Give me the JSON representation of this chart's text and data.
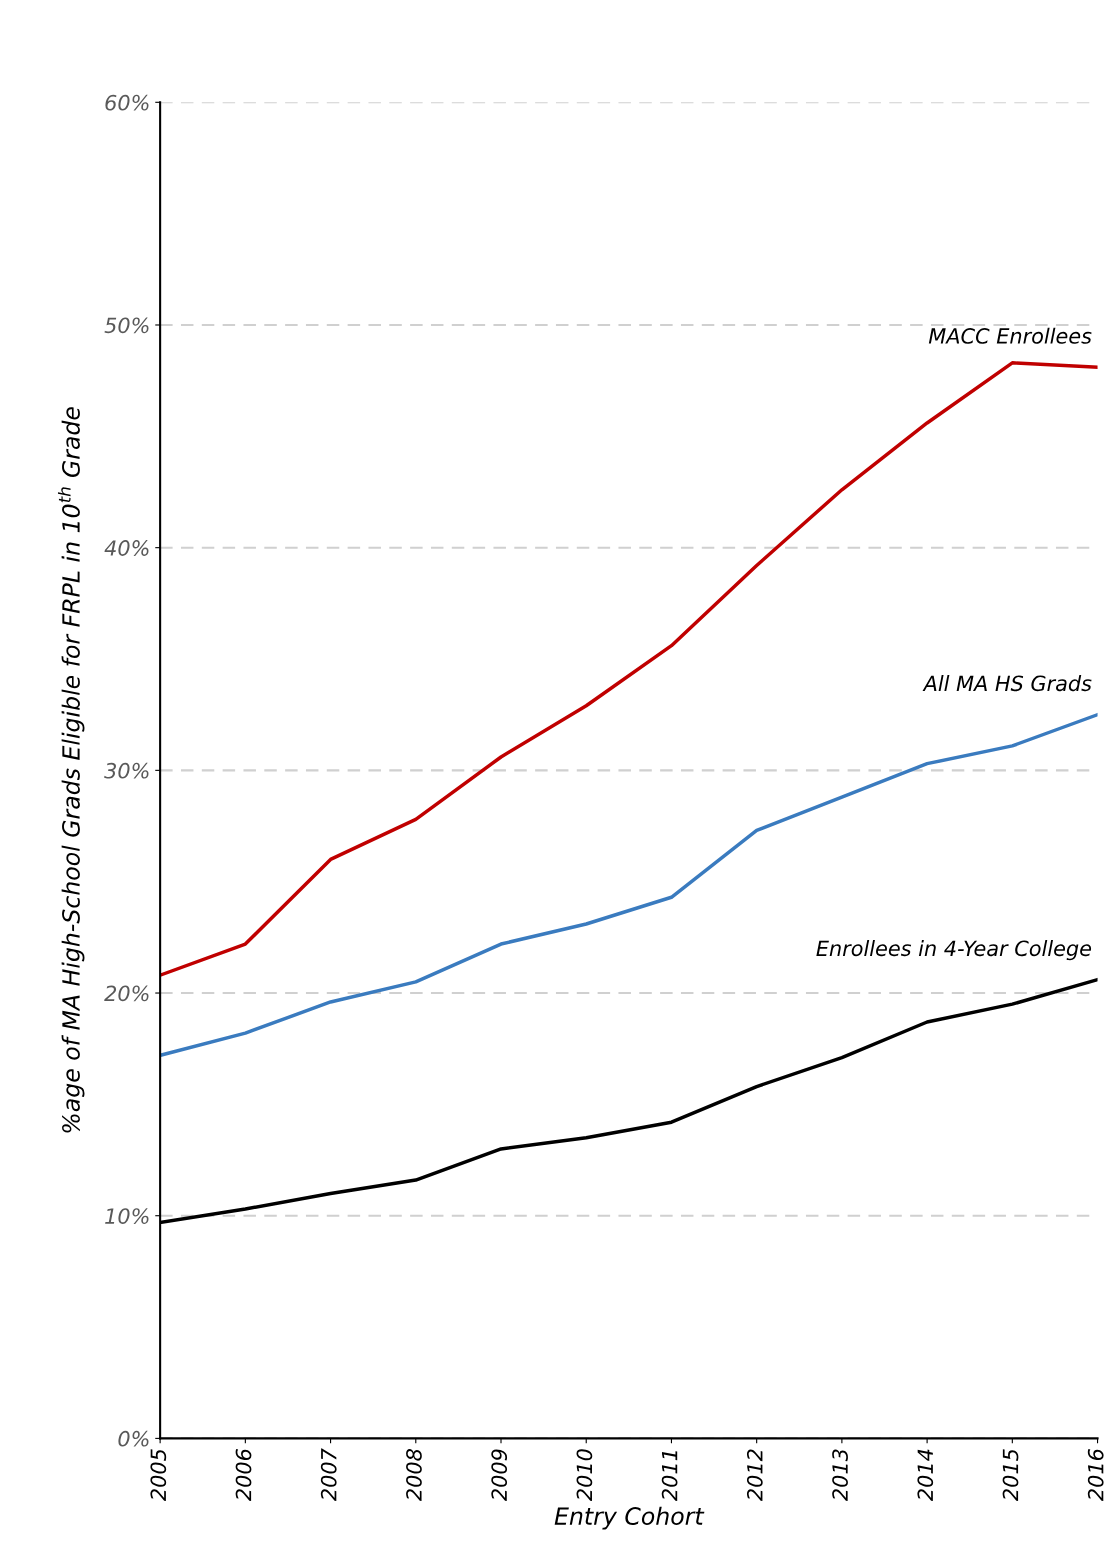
{
  "chart_data": {
    "type": "line",
    "xlabel": "Entry Cohort",
    "ylabel": "%age of MA High-School Grads Eligible for FRPL in 10$^{th}$ Grade",
    "categories": [
      "2005",
      "2006",
      "2007",
      "2008",
      "2009",
      "2010",
      "2011",
      "2012",
      "2013",
      "2014",
      "2015",
      "2016"
    ],
    "series": [
      {
        "name": "MACC Enrollees",
        "color": "#c00000",
        "values": [
          20.8,
          22.2,
          26.0,
          27.8,
          30.6,
          32.9,
          35.6,
          39.2,
          42.6,
          45.6,
          48.3,
          48.1
        ]
      },
      {
        "name": "All MA HS Grads",
        "color": "#3a7bbf",
        "values": [
          17.2,
          18.2,
          19.6,
          20.5,
          22.2,
          23.1,
          24.3,
          27.3,
          28.8,
          30.3,
          31.1,
          32.5
        ]
      },
      {
        "name": "Enrollees in 4-Year College",
        "color": "#000000",
        "values": [
          9.7,
          10.3,
          11.0,
          11.6,
          13.0,
          13.5,
          14.2,
          15.8,
          17.1,
          18.7,
          19.5,
          20.6
        ]
      }
    ],
    "ylim": [
      0,
      60
    ],
    "yticks": [
      {
        "value": 0,
        "label": "0%"
      },
      {
        "value": 10,
        "label": "10%"
      },
      {
        "value": 20,
        "label": "20%"
      },
      {
        "value": 30,
        "label": "30%"
      },
      {
        "value": 40,
        "label": "40%"
      },
      {
        "value": 50,
        "label": "50%"
      },
      {
        "value": 60,
        "label": "60%"
      }
    ],
    "grid": "y",
    "marker": "none",
    "line_style": "solid",
    "legend": false
  }
}
